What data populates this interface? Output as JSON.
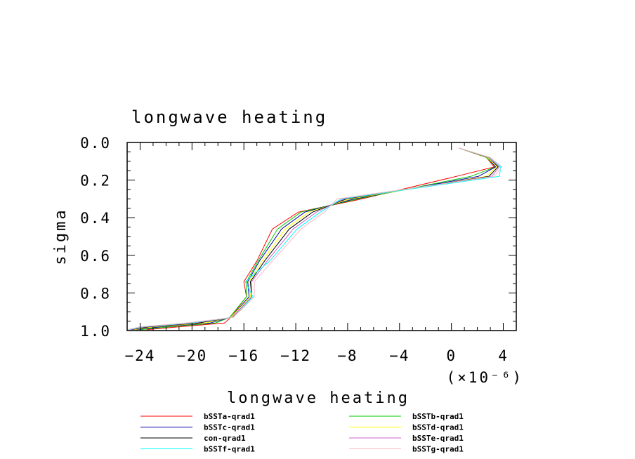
{
  "chart_data": {
    "type": "line",
    "title": "longwave heating",
    "xlabel": "longwave heating",
    "ylabel": "sigma",
    "x_multiplier": "(×10⁻⁶)",
    "xlim": [
      -25,
      5
    ],
    "ylim": [
      0.0,
      1.0
    ],
    "y_inverted": true,
    "x_ticks": [
      -24,
      -20,
      -16,
      -12,
      -8,
      -4,
      0,
      4
    ],
    "x_tick_labels": [
      "−24",
      "−20",
      "−16",
      "−12",
      "−8",
      "−4",
      "0",
      "4"
    ],
    "y_ticks": [
      0.0,
      0.2,
      0.4,
      0.6,
      0.8,
      1.0
    ],
    "y_tick_labels": [
      "0.0",
      "0.2",
      "0.4",
      "0.6",
      "0.8",
      "1.0"
    ],
    "grid": false,
    "legend_position": "bottom",
    "sigma_levels": [
      0.03,
      0.08,
      0.13,
      0.18,
      0.3,
      0.37,
      0.46,
      0.63,
      0.74,
      0.82,
      0.93,
      0.96,
      0.98,
      0.995
    ],
    "series": [
      {
        "name": "bSSTa-qrad1",
        "color": "#ff0000",
        "x": [
          0.6,
          2.7,
          3.3,
          0.4,
          -6.9,
          -11.8,
          -13.8,
          -15.0,
          -16.0,
          -15.8,
          -17.0,
          -17.5,
          -21.0,
          -23.5
        ]
      },
      {
        "name": "bSSTb-qrad1",
        "color": "#00cc00",
        "x": [
          0.6,
          2.7,
          3.4,
          1.5,
          -7.2,
          -11.6,
          -13.4,
          -14.9,
          -15.8,
          -15.8,
          -17.1,
          -18.2,
          -21.7,
          -24.0
        ]
      },
      {
        "name": "bSSTc-qrad1",
        "color": "#0000aa",
        "x": [
          0.6,
          2.8,
          3.4,
          2.1,
          -7.5,
          -11.3,
          -13.1,
          -14.8,
          -15.7,
          -15.6,
          -17.0,
          -18.6,
          -22.4,
          -24.3
        ]
      },
      {
        "name": "bSSTd-qrad1",
        "color": "#ffff00",
        "x": [
          0.6,
          2.8,
          3.5,
          2.7,
          -7.8,
          -11.0,
          -12.8,
          -14.6,
          -15.6,
          -15.5,
          -17.0,
          -19.0,
          -22.9,
          -24.5
        ]
      },
      {
        "name": "con-qrad1",
        "color": "#000000",
        "x": [
          0.6,
          2.9,
          3.6,
          2.9,
          -8.1,
          -10.7,
          -12.5,
          -14.4,
          -15.5,
          -15.4,
          -16.9,
          -19.5,
          -23.3,
          -24.7
        ]
      },
      {
        "name": "bSSTe-qrad1",
        "color": "#cc66cc",
        "x": [
          0.6,
          2.9,
          3.7,
          3.1,
          -8.3,
          -10.4,
          -12.2,
          -14.2,
          -15.4,
          -15.4,
          -16.9,
          -19.9,
          -23.6,
          -24.8
        ]
      },
      {
        "name": "bSSTf-qrad1",
        "color": "#00ffff",
        "x": [
          0.6,
          3.0,
          3.8,
          3.7,
          -8.5,
          -10.1,
          -11.9,
          -14.0,
          -15.9,
          -15.3,
          -16.8,
          -20.2,
          -23.8,
          -24.9
        ]
      },
      {
        "name": "bSSTg-qrad1",
        "color": "#ffb6c1",
        "x": [
          0.6,
          3.0,
          3.9,
          3.3,
          -8.8,
          -9.8,
          -11.6,
          -13.8,
          -15.2,
          -15.2,
          -16.8,
          -20.5,
          -24.0,
          -25.0
        ]
      }
    ],
    "legend_order": [
      "bSSTa-qrad1",
      "bSSTc-qrad1",
      "con-qrad1",
      "bSSTf-qrad1",
      "bSSTb-qrad1",
      "bSSTd-qrad1",
      "bSSTe-qrad1",
      "bSSTg-qrad1"
    ]
  }
}
